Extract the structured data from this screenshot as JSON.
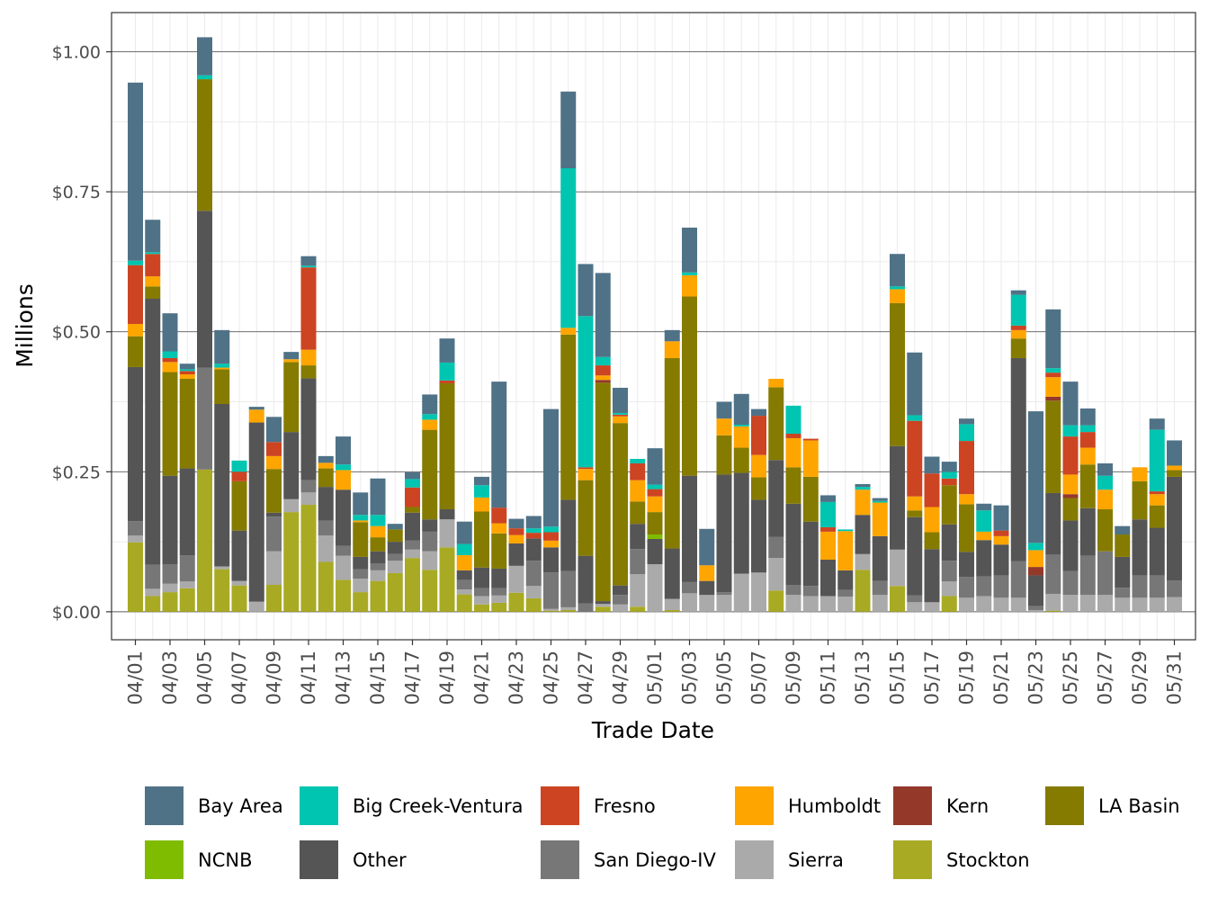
{
  "chart_data": {
    "type": "bar",
    "stacked": true,
    "title": "",
    "xlabel": "Trade Date",
    "ylabel": "Millions",
    "ylim": [
      -0.05,
      1.07
    ],
    "y_ticks": [
      0.0,
      0.25,
      0.5,
      0.75,
      1.0
    ],
    "y_tick_labels": [
      "$0.00",
      "$0.25",
      "$0.50",
      "$0.75",
      "$1.00"
    ],
    "legend_position": "bottom",
    "categories": [
      "04/01",
      "04/02",
      "04/03",
      "04/04",
      "04/05",
      "04/06",
      "04/07",
      "04/08",
      "04/09",
      "04/10",
      "04/11",
      "04/12",
      "04/13",
      "04/14",
      "04/15",
      "04/16",
      "04/17",
      "04/18",
      "04/19",
      "04/20",
      "04/21",
      "04/22",
      "04/23",
      "04/24",
      "04/25",
      "04/26",
      "04/27",
      "04/28",
      "04/29",
      "04/30",
      "05/01",
      "05/02",
      "05/03",
      "05/04",
      "05/05",
      "05/06",
      "05/07",
      "05/08",
      "05/09",
      "05/10",
      "05/11",
      "05/12",
      "05/13",
      "05/14",
      "05/15",
      "05/16",
      "05/17",
      "05/18",
      "05/19",
      "05/20",
      "05/21",
      "05/22",
      "05/23",
      "05/24",
      "05/25",
      "05/26",
      "05/27",
      "05/28",
      "05/29",
      "05/30",
      "05/31"
    ],
    "x_tick_labels": [
      "04/01",
      "04/03",
      "04/05",
      "04/07",
      "04/09",
      "04/11",
      "04/13",
      "04/15",
      "04/17",
      "04/19",
      "04/21",
      "04/23",
      "04/25",
      "04/27",
      "04/29",
      "05/01",
      "05/03",
      "05/05",
      "05/07",
      "05/09",
      "05/11",
      "05/13",
      "05/15",
      "05/17",
      "05/19",
      "05/21",
      "05/23",
      "05/25",
      "05/27",
      "05/29",
      "05/31"
    ],
    "series": [
      {
        "name": "Stockton",
        "color": "#A8AA23",
        "values": [
          0.124,
          0.028,
          0.035,
          0.042,
          0.254,
          0.076,
          0.047,
          0.0,
          0.048,
          0.178,
          0.191,
          0.089,
          0.057,
          0.035,
          0.055,
          0.069,
          0.096,
          0.075,
          0.115,
          0.031,
          0.013,
          0.016,
          0.034,
          0.024,
          0.002,
          0.003,
          0.0,
          0.009,
          0.0,
          0.009,
          0.0,
          0.003,
          0.0,
          0.0,
          0.0,
          0.0,
          0.0,
          0.038,
          0.0,
          0.0,
          0.0,
          0.0,
          0.075,
          0.0,
          0.046,
          0.0,
          0.0,
          0.028,
          0.0,
          0.0,
          0.0,
          0.0,
          0.0,
          0.002,
          0.0,
          0.0,
          0.0,
          0.0,
          0.0,
          0.0,
          0.0
        ]
      },
      {
        "name": "Sierra",
        "color": "#AAAAAA",
        "values": [
          0.012,
          0.013,
          0.015,
          0.012,
          0.0,
          0.005,
          0.008,
          0.018,
          0.06,
          0.023,
          0.022,
          0.047,
          0.043,
          0.024,
          0.019,
          0.022,
          0.015,
          0.033,
          0.05,
          0.009,
          0.015,
          0.013,
          0.048,
          0.022,
          0.003,
          0.005,
          0.0,
          0.005,
          0.013,
          0.058,
          0.085,
          0.02,
          0.033,
          0.03,
          0.03,
          0.068,
          0.07,
          0.058,
          0.03,
          0.028,
          0.028,
          0.027,
          0.028,
          0.03,
          0.065,
          0.017,
          0.017,
          0.026,
          0.025,
          0.028,
          0.025,
          0.025,
          0.003,
          0.03,
          0.03,
          0.03,
          0.03,
          0.025,
          0.025,
          0.025,
          0.026
        ]
      },
      {
        "name": "San Diego-IV",
        "color": "#777777",
        "values": [
          0.026,
          0.043,
          0.035,
          0.047,
          0.182,
          0.0,
          0.0,
          0.0,
          0.062,
          0.0,
          0.022,
          0.027,
          0.018,
          0.017,
          0.012,
          0.012,
          0.016,
          0.035,
          0.0,
          0.017,
          0.014,
          0.013,
          0.0,
          0.045,
          0.065,
          0.065,
          0.015,
          0.0,
          0.017,
          0.045,
          0.0,
          0.0,
          0.02,
          0.0,
          0.005,
          0.0,
          0.0,
          0.038,
          0.018,
          0.018,
          0.0,
          0.012,
          0.0,
          0.025,
          0.0,
          0.012,
          0.0,
          0.037,
          0.037,
          0.035,
          0.04,
          0.065,
          0.007,
          0.07,
          0.043,
          0.07,
          0.078,
          0.018,
          0.04,
          0.04,
          0.03
        ]
      },
      {
        "name": "Other",
        "color": "#555555",
        "values": [
          0.275,
          0.475,
          0.158,
          0.155,
          0.28,
          0.29,
          0.09,
          0.32,
          0.007,
          0.12,
          0.182,
          0.06,
          0.1,
          0.022,
          0.022,
          0.022,
          0.05,
          0.022,
          0.018,
          0.017,
          0.037,
          0.035,
          0.04,
          0.04,
          0.045,
          0.127,
          0.085,
          0.005,
          0.017,
          0.045,
          0.045,
          0.09,
          0.19,
          0.025,
          0.21,
          0.18,
          0.13,
          0.137,
          0.145,
          0.115,
          0.065,
          0.035,
          0.07,
          0.08,
          0.185,
          0.14,
          0.095,
          0.065,
          0.045,
          0.065,
          0.055,
          0.363,
          0.055,
          0.11,
          0.09,
          0.085,
          0.0,
          0.055,
          0.1,
          0.085,
          0.185
        ]
      },
      {
        "name": "NCNB",
        "color": "#7FBC00",
        "values": [
          0,
          0,
          0,
          0,
          0,
          0,
          0,
          0,
          0,
          0,
          0,
          0,
          0,
          0,
          0,
          0,
          0,
          0,
          0,
          0,
          0,
          0,
          0,
          0,
          0,
          0,
          0,
          0,
          0,
          0,
          0.008,
          0,
          0,
          0,
          0,
          0,
          0,
          0,
          0,
          0,
          0,
          0,
          0,
          0,
          0,
          0,
          0,
          0,
          0,
          0,
          0,
          0,
          0,
          0,
          0,
          0,
          0,
          0,
          0,
          0,
          0
        ]
      },
      {
        "name": "LA Basin",
        "color": "#857B00",
        "values": [
          0.055,
          0.022,
          0.185,
          0.16,
          0.235,
          0.062,
          0.088,
          0.0,
          0.078,
          0.125,
          0.023,
          0.033,
          0.0,
          0.062,
          0.025,
          0.022,
          0.01,
          0.16,
          0.225,
          0.0,
          0.1,
          0.063,
          0.0,
          0.0,
          0.0,
          0.295,
          0.135,
          0.39,
          0.29,
          0.04,
          0.04,
          0.34,
          0.32,
          0.0,
          0.07,
          0.045,
          0.04,
          0.13,
          0.065,
          0.08,
          0.0,
          0.0,
          0.0,
          0.0,
          0.255,
          0.012,
          0.03,
          0.07,
          0.085,
          0.0,
          0.0,
          0.035,
          0.0,
          0.165,
          0.04,
          0.078,
          0.075,
          0.04,
          0.068,
          0.04,
          0.012
        ]
      },
      {
        "name": "Kern",
        "color": "#94382A",
        "values": [
          0,
          0,
          0,
          0,
          0,
          0,
          0,
          0,
          0,
          0,
          0,
          0,
          0,
          0,
          0,
          0,
          0,
          0,
          0,
          0,
          0,
          0,
          0,
          0,
          0,
          0,
          0,
          0.005,
          0,
          0,
          0,
          0,
          0,
          0,
          0,
          0,
          0,
          0,
          0,
          0,
          0,
          0,
          0,
          0,
          0,
          0,
          0,
          0,
          0,
          0,
          0,
          0,
          0.015,
          0.007,
          0.007,
          0,
          0,
          0,
          0,
          0,
          0
        ]
      },
      {
        "name": "Humboldt",
        "color": "#FFA500",
        "values": [
          0.022,
          0.018,
          0.018,
          0.008,
          0.0,
          0.003,
          0.0,
          0.023,
          0.023,
          0.005,
          0.028,
          0.01,
          0.035,
          0.003,
          0.02,
          0.0,
          0.0,
          0.018,
          0.0,
          0.027,
          0.025,
          0.018,
          0.015,
          0.0,
          0.012,
          0.012,
          0.02,
          0.008,
          0.012,
          0.038,
          0.028,
          0.03,
          0.038,
          0.028,
          0.03,
          0.038,
          0.04,
          0.015,
          0.052,
          0.065,
          0.05,
          0.07,
          0.045,
          0.06,
          0.025,
          0.025,
          0.045,
          0.0,
          0.018,
          0.015,
          0.015,
          0.015,
          0.03,
          0.035,
          0.035,
          0.03,
          0.035,
          0.0,
          0.025,
          0.02,
          0.008
        ]
      },
      {
        "name": "Fresno",
        "color": "#CC4422",
        "values": [
          0.105,
          0.04,
          0.007,
          0.006,
          0.0,
          0.0,
          0.017,
          0.0,
          0.025,
          0.0,
          0.147,
          0.0,
          0.0,
          0.0,
          0.0,
          0.0,
          0.035,
          0.0,
          0.005,
          0.0,
          0.0,
          0.028,
          0.012,
          0.01,
          0.015,
          0.0,
          0.003,
          0.018,
          0.003,
          0.03,
          0.013,
          0.0,
          0.0,
          0.0,
          0.0,
          0.0,
          0.07,
          0.0,
          0.008,
          0.003,
          0.008,
          0.0,
          0.0,
          0.0,
          0.0,
          0.135,
          0.06,
          0.012,
          0.095,
          0.0,
          0.01,
          0.008,
          0.0,
          0.008,
          0.068,
          0.028,
          0.0,
          0.0,
          0.0,
          0.005,
          0.0
        ]
      },
      {
        "name": "Big Creek-Ventura",
        "color": "#00C5B0",
        "values": [
          0.008,
          0.003,
          0.012,
          0.003,
          0.007,
          0.007,
          0.02,
          0.0,
          0.0,
          0.0,
          0.003,
          0.0,
          0.01,
          0.01,
          0.02,
          0.0,
          0.015,
          0.01,
          0.032,
          0.02,
          0.022,
          0.0,
          0.0,
          0.008,
          0.01,
          0.285,
          0.27,
          0.015,
          0.003,
          0.008,
          0.008,
          0.0,
          0.005,
          0.0,
          0.0,
          0.003,
          0.0,
          0.0,
          0.05,
          0.0,
          0.045,
          0.003,
          0.005,
          0.003,
          0.005,
          0.01,
          0.0,
          0.012,
          0.03,
          0.038,
          0.0,
          0.055,
          0.013,
          0.008,
          0.02,
          0.012,
          0.025,
          0.0,
          0.0,
          0.11,
          0.0
        ]
      },
      {
        "name": "Bay Area",
        "color": "#4F7287",
        "values": [
          0.318,
          0.058,
          0.068,
          0.01,
          0.068,
          0.06,
          0.0,
          0.005,
          0.045,
          0.013,
          0.017,
          0.012,
          0.05,
          0.04,
          0.065,
          0.01,
          0.012,
          0.035,
          0.043,
          0.04,
          0.015,
          0.225,
          0.017,
          0.022,
          0.21,
          0.137,
          0.093,
          0.15,
          0.045,
          0.0,
          0.065,
          0.02,
          0.08,
          0.065,
          0.03,
          0.055,
          0.012,
          0.0,
          0.0,
          0.0,
          0.012,
          0.0,
          0.005,
          0.005,
          0.058,
          0.112,
          0.03,
          0.018,
          0.01,
          0.012,
          0.045,
          0.008,
          0.235,
          0.105,
          0.078,
          0.03,
          0.022,
          0.015,
          0.0,
          0.02,
          0.045
        ]
      }
    ],
    "legend": [
      "Bay Area",
      "Big Creek-Ventura",
      "Fresno",
      "Humboldt",
      "Kern",
      "LA Basin",
      "NCNB",
      "Other",
      "San Diego-IV",
      "Sierra",
      "Stockton"
    ]
  }
}
